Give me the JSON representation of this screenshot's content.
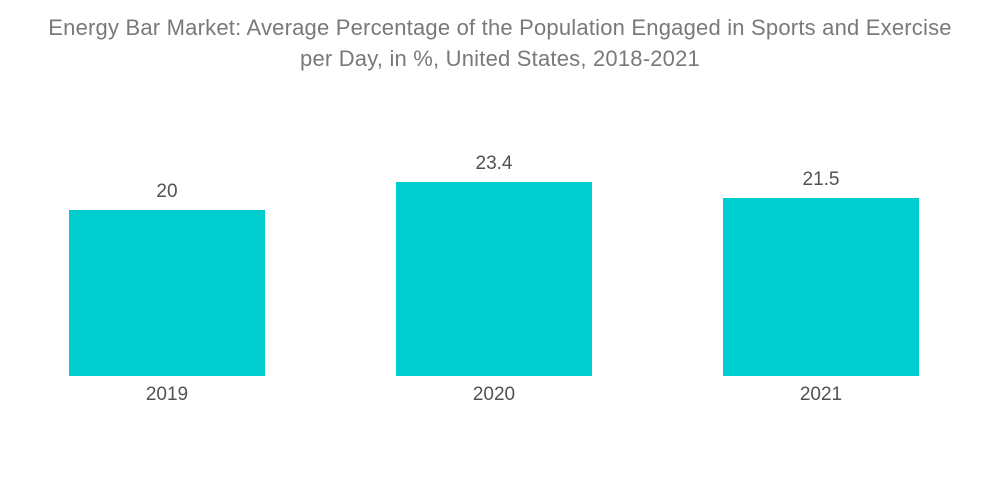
{
  "header": {
    "title_line1": "Energy Bar Market: Average Percentage of the Population Engaged in Sports and Exercise",
    "title_line2": "per Day, in %, United States, 2018-2021"
  },
  "colors": {
    "bar": "#00CDD0",
    "title_text": "#77797C",
    "label_text": "#515254",
    "background": "#FFFFFF"
  },
  "chart_data": {
    "type": "bar",
    "title": "Energy Bar Market: Average Percentage of the Population Engaged in Sports and Exercise per Day, in %, United States, 2018-2021",
    "categories": [
      "2019",
      "2020",
      "2021"
    ],
    "values": [
      20,
      23.4,
      21.5
    ],
    "value_labels": [
      "20",
      "23.4",
      "21.5"
    ],
    "xlabel": "",
    "ylabel": "",
    "ylim": [
      0,
      25
    ],
    "grid": false,
    "legend": false,
    "axes_visible": false,
    "bar_color": "#00CDD0"
  }
}
